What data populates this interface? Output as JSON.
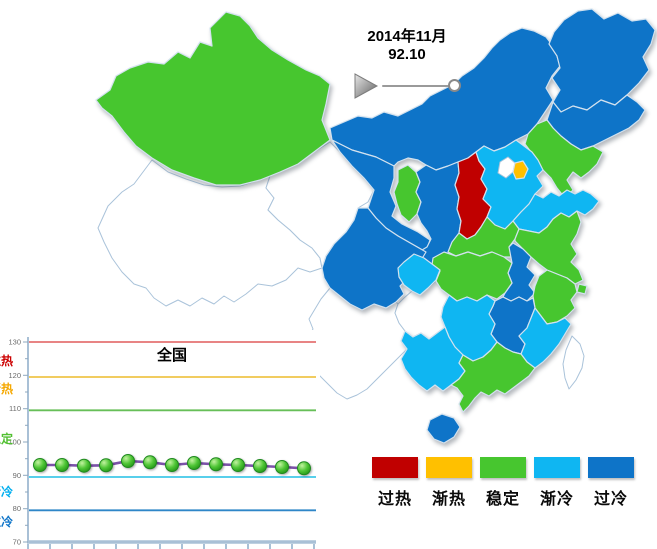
{
  "timeline": {
    "date": "2014年11月",
    "value": "92.10",
    "play_icon": "play-triangle"
  },
  "status_colors": {
    "overheat": "#c00000",
    "warming": "#ffc000",
    "stable": "#47c62f",
    "cooling": "#0fb6f2",
    "overcool": "#0e74c8",
    "no-data": "#ffffff"
  },
  "legend": {
    "items": [
      {
        "label": "过热",
        "status": "overheat",
        "color": "#c00000"
      },
      {
        "label": "渐热",
        "status": "warming",
        "color": "#ffc000"
      },
      {
        "label": "稳定",
        "status": "stable",
        "color": "#47c62f"
      },
      {
        "label": "渐冷",
        "status": "cooling",
        "color": "#0fb6f2"
      },
      {
        "label": "过冷",
        "status": "overcool",
        "color": "#0e74c8"
      }
    ]
  },
  "chart_data": [
    {
      "type": "line",
      "title": "全国",
      "xlabel": "",
      "ylabel": "",
      "ylim": [
        70,
        130
      ],
      "yticks": [
        70,
        80,
        90,
        100,
        110,
        120,
        130
      ],
      "x_tick_count": 14,
      "grid": false,
      "line_color": "#7b52a8",
      "marker_color": "#4fc636",
      "values": [
        93.1,
        93.1,
        92.9,
        93.0,
        94.3,
        93.9,
        93.1,
        93.7,
        93.3,
        93.1,
        92.8,
        92.5,
        92.1
      ],
      "last_value_label": "92.10",
      "reference_lines": [
        {
          "value": 130.0,
          "color": "#e57373"
        },
        {
          "value": 119.5,
          "color": "#efc44a"
        },
        {
          "value": 109.5,
          "color": "#67bf58"
        },
        {
          "value": 89.5,
          "color": "#41c8e8"
        },
        {
          "value": 79.5,
          "color": "#2e86c8"
        }
      ],
      "zone_labels": [
        {
          "text": "过热",
          "color": "#cc0000",
          "y": 22
        },
        {
          "text": "渐热",
          "color": "#f5a800",
          "y": 50
        },
        {
          "text": "稳定",
          "color": "#52c032",
          "y": 100
        },
        {
          "text": "渐冷",
          "color": "#00aeef",
          "y": 153
        },
        {
          "text": "过冷",
          "color": "#0e74c8",
          "y": 183
        }
      ]
    },
    {
      "type": "heatmap",
      "title": "",
      "legend_position": "bottom-right",
      "data": {
        "xinjiang": "stable",
        "xizang": "no-data",
        "qinghai": "no-data",
        "gansu": "overcool",
        "neimenggu": "overcool",
        "ningxia": "stable",
        "shaanxi": "overcool",
        "sichuan": "overcool",
        "chongqing": "cooling",
        "yunnan": "no-data",
        "guizhou": "no-data",
        "heilongjiang": "overcool",
        "jilin": "overcool",
        "liaoning": "stable",
        "beijing": "no-data",
        "tianjin": "warming",
        "hebei": "cooling",
        "shanxi": "overheat",
        "shandong": "cooling",
        "henan": "stable",
        "jiangsu": "stable",
        "anhui": "overcool",
        "shanghai": "stable",
        "zhejiang": "stable",
        "hubei": "stable",
        "hunan": "cooling",
        "jiangxi": "overcool",
        "fujian": "cooling",
        "guangdong": "stable",
        "guangxi": "cooling",
        "hainan": "overcool",
        "taiwan": "no-data"
      }
    }
  ]
}
